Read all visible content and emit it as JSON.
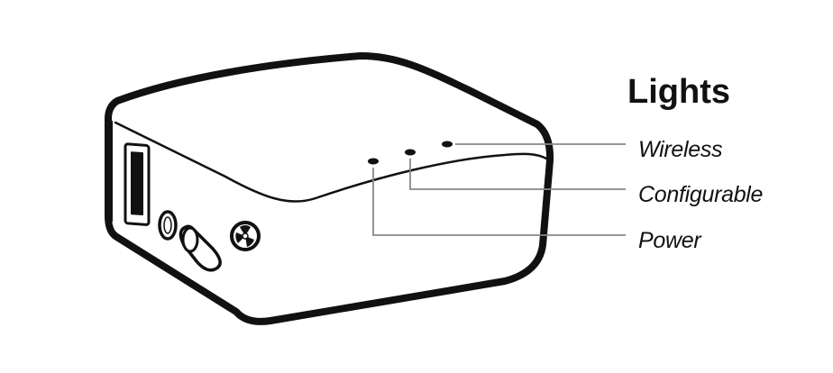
{
  "heading": "Lights",
  "lights": [
    {
      "id": "wireless",
      "label": "Wireless"
    },
    {
      "id": "configurable",
      "label": "Configurable"
    },
    {
      "id": "power",
      "label": "Power"
    }
  ],
  "colors": {
    "outline": "#111111",
    "leader_line": "#888888",
    "background": "#ffffff"
  }
}
